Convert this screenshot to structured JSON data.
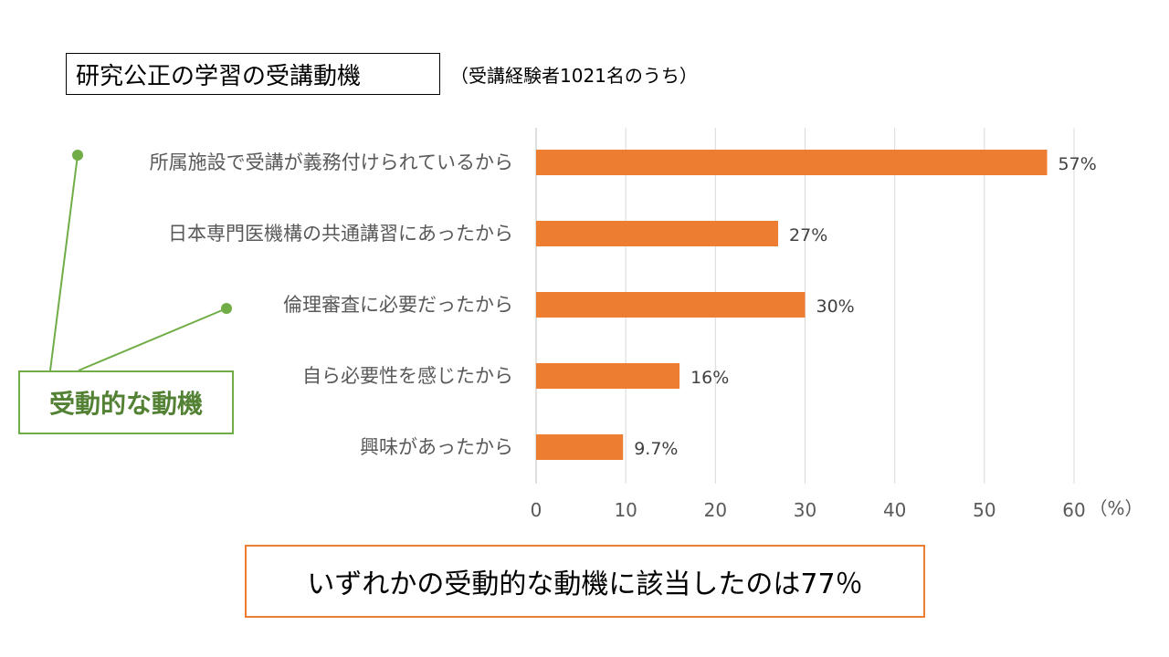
{
  "chart_data": {
    "type": "bar",
    "orientation": "horizontal",
    "title": "研究公正の学習の受講動機",
    "subtitle": "（受講経験者1021名のうち）",
    "categories": [
      "所属施設で受講が義務付けられているから",
      "日本専門医機構の共通講習にあったから",
      "倫理審査に必要だったから",
      "自ら必要性を感じたから",
      "興味があったから"
    ],
    "values": [
      57,
      27,
      30,
      16,
      9.7
    ],
    "data_labels": [
      "57%",
      "27%",
      "30%",
      "16%",
      "9.7%"
    ],
    "xlim": [
      0,
      60
    ],
    "xticks": [
      "0",
      "10",
      "20",
      "30",
      "40",
      "50",
      "60"
    ],
    "x_unit_label": "（%）",
    "grid": "vertical",
    "bar_color": "#ED7D31"
  },
  "annotation": {
    "label": "受動的な動機",
    "color": "#70AD47",
    "points_to": [
      0,
      2
    ]
  },
  "summary": {
    "text": "いずれかの受動的な動機に該当したのは77％",
    "border_color": "#ED7D31"
  }
}
